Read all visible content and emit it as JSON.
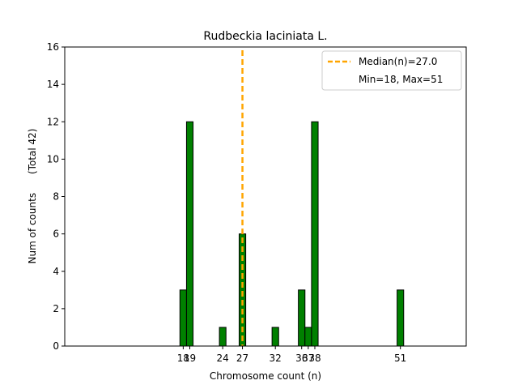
{
  "chart_data": {
    "type": "bar",
    "title": "Rudbeckia laciniata L.",
    "xlabel": "Chromosome count (n)",
    "ylabel": "Num of counts      (Total 42)",
    "xlim": [
      0,
      61
    ],
    "ylim": [
      0,
      16
    ],
    "yticks": [
      0,
      2,
      4,
      6,
      8,
      10,
      12,
      14,
      16
    ],
    "xticks": [
      18,
      19,
      24,
      27,
      32,
      36,
      37,
      38,
      51
    ],
    "bin_width": 1,
    "bars": [
      {
        "x": 18,
        "count": 3
      },
      {
        "x": 19,
        "count": 12
      },
      {
        "x": 24,
        "count": 1
      },
      {
        "x": 27,
        "count": 6
      },
      {
        "x": 32,
        "count": 1
      },
      {
        "x": 36,
        "count": 3
      },
      {
        "x": 37,
        "count": 1
      },
      {
        "x": 38,
        "count": 12
      },
      {
        "x": 51,
        "count": 3
      }
    ],
    "bar_color": "#008000",
    "median": 27.0,
    "median_color": "#FFA500",
    "legend": {
      "position": "top-right",
      "entries": [
        "Median(n)=27.0",
        "Min=18, Max=51"
      ]
    },
    "grid": false
  }
}
